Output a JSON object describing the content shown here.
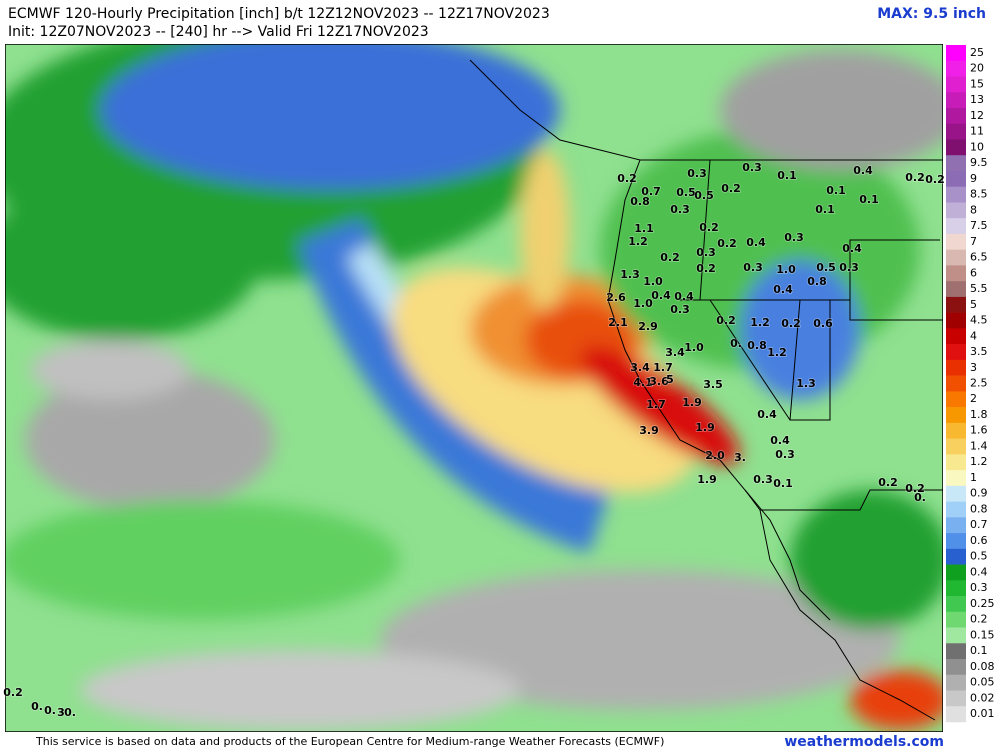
{
  "header": {
    "title": "ECMWF 120-Hourly Precipitation [inch] b/t 12Z12NOV2023 -- 12Z17NOV2023",
    "subtitle": "Init: 12Z07NOV2023 -- [240] hr --> Valid Fri 12Z17NOV2023",
    "max": "MAX: 9.5 inch"
  },
  "legend": {
    "levels": [
      "25",
      "20",
      "15",
      "13",
      "12",
      "11",
      "10",
      "9.5",
      "9",
      "8.5",
      "8",
      "7.5",
      "7",
      "6.5",
      "6",
      "5.5",
      "5",
      "4.5",
      "4",
      "3.5",
      "3",
      "2.5",
      "2",
      "1.8",
      "1.6",
      "1.4",
      "1.2",
      "1",
      "0.9",
      "0.8",
      "0.7",
      "0.6",
      "0.5",
      "0.4",
      "0.3",
      "0.25",
      "0.2",
      "0.15",
      "0.1",
      "0.08",
      "0.05",
      "0.02",
      "0.01"
    ],
    "colors": [
      "#ff00ff",
      "#f020e8",
      "#e020d0",
      "#c81cb8",
      "#b018a0",
      "#981488",
      "#801070",
      "#9070b0",
      "#8c6cb4",
      "#a890c8",
      "#c0b0d8",
      "#d8d0e8",
      "#f0d8d0",
      "#d8b8b0",
      "#c09088",
      "#a07070",
      "#8b1010",
      "#a00000",
      "#c80000",
      "#e01010",
      "#e83000",
      "#f05000",
      "#f87800",
      "#f89800",
      "#f8b830",
      "#f8d060",
      "#f8e890",
      "#f8f8c0",
      "#c8e8f8",
      "#a0d0f8",
      "#78b0f0",
      "#5090e8",
      "#2860d0",
      "#10a020",
      "#20b830",
      "#40c850",
      "#70d870",
      "#a0e8a0",
      "#707070",
      "#909090",
      "#b0b0b0",
      "#c8c8c8",
      "#e0e0e0"
    ]
  },
  "map": {
    "labels": [
      "0.3",
      "0.3",
      "0.1",
      "0.4",
      "0.2",
      "0.2",
      "0.2",
      "0.7",
      "0.8",
      "0.5",
      "0.5",
      "0.2",
      "0.3",
      "0.1",
      "0.1",
      "0.1",
      "1.1",
      "1.2",
      "0.2",
      "0.2",
      "0.4",
      "0.3",
      "0.4",
      "1.3",
      "0.2",
      "0.3",
      "0.2",
      "0.3",
      "1.0",
      "0.5",
      "0.3",
      "0.8",
      "1.0",
      "2.6",
      "1.0",
      "0.4",
      "0.4",
      "0.3",
      "0.4",
      "2.1",
      "2.9",
      "0.2",
      "1.2",
      "0.2",
      "0.6",
      "1.0",
      "3.4",
      "0.8",
      "1.2",
      "0.",
      "3.4",
      "1.7",
      "4.1",
      "3.6",
      "5",
      "1.7",
      "3.5",
      "1.3",
      "1.9",
      "0.4",
      "3.9",
      "1.9",
      "0.4",
      "2.0",
      "3.",
      "0.3",
      "1.9",
      "0.3",
      "0.1",
      "0.2",
      "0.2",
      "0.",
      "0.2",
      "0.",
      "0.",
      "3",
      "0."
    ]
  },
  "footer": {
    "attribution": "This service is based on data and products of the European Centre for Medium-range Weather Forecasts (ECMWF)",
    "site": "weathermodels.com"
  }
}
